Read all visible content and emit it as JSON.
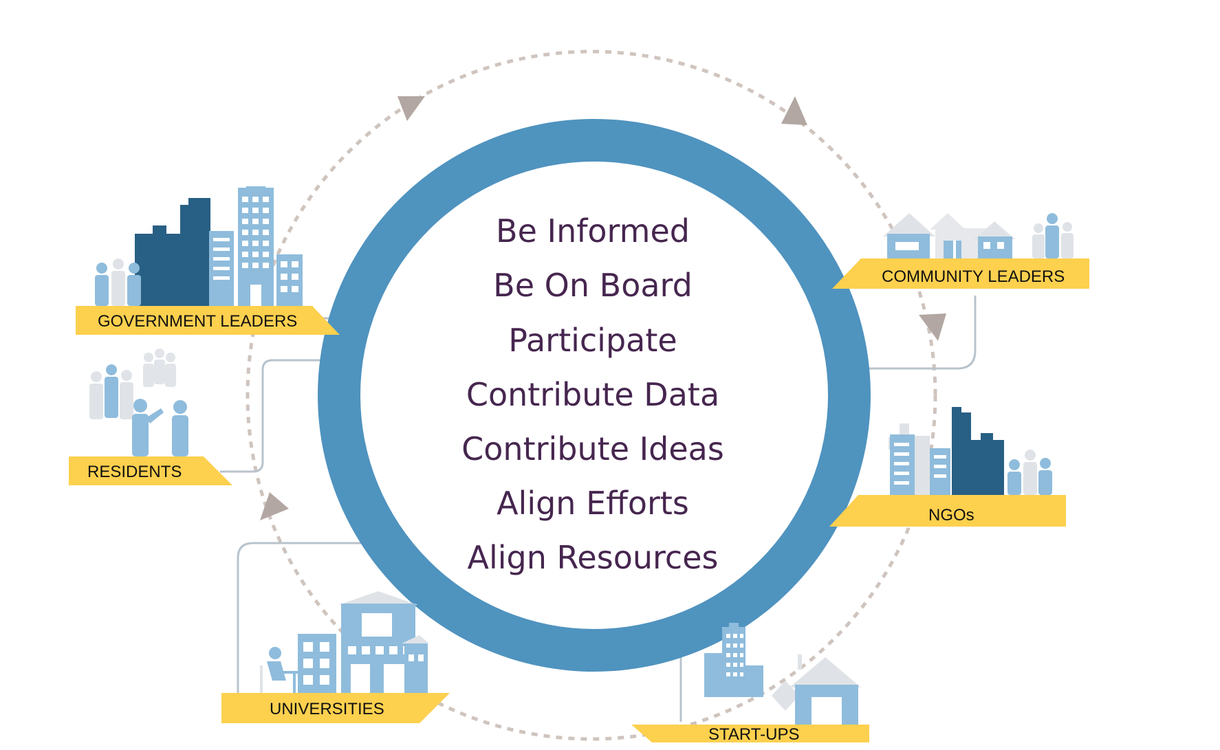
{
  "center": {
    "items": [
      "Be Informed",
      "Be On Board",
      "Participate",
      "Contribute Data",
      "Contribute Ideas",
      "Align Efforts",
      "Align Resources"
    ]
  },
  "stakeholders": {
    "government": "GOVERNMENT LEADERS",
    "residents": "RESIDENTS",
    "universities": "UNIVERSITIES",
    "startups": "START-UPS",
    "ngos": "NGOs",
    "community": "COMMUNITY LEADERS"
  },
  "colors": {
    "ring": "#4f93bf",
    "label_band": "#fdd04e",
    "text_purple": "#46264f",
    "dark_blue": "#285f84",
    "light_blue": "#8fbcdc",
    "pale": "#d9dde2",
    "cycle_arrow": "#b2a7a2",
    "connector": "#b8c3cc"
  }
}
